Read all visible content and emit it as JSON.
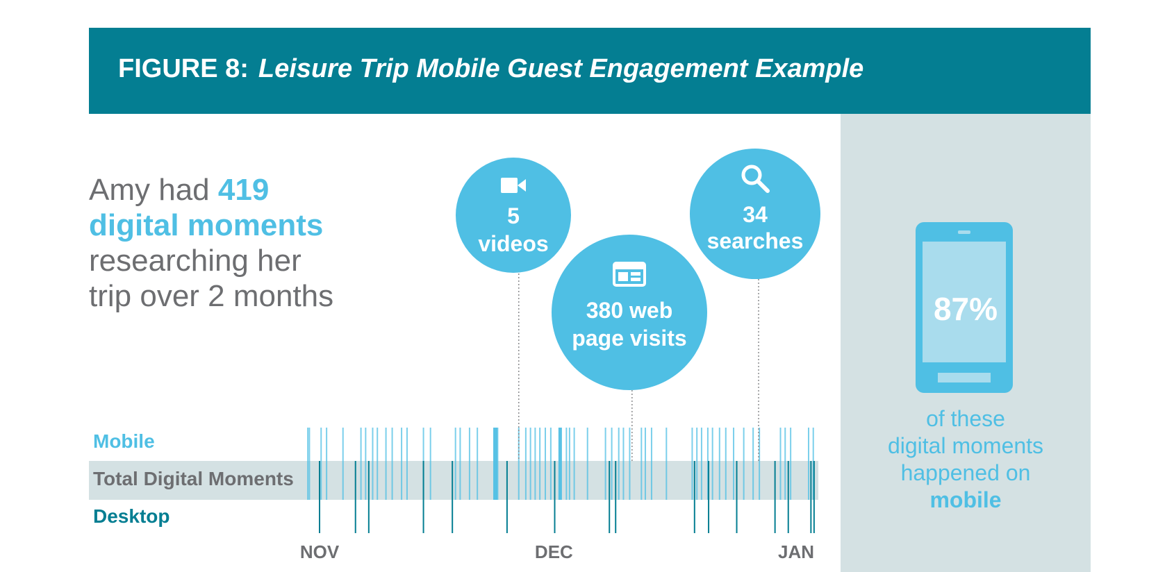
{
  "figure": {
    "number_label": "FIGURE 8:",
    "title": "Leisure Trip Mobile Guest Engagement Example"
  },
  "headline": {
    "line1_prefix": "Amy had ",
    "line1_value": "419",
    "line2": "digital moments",
    "line3": "researching her",
    "line4": "trip over 2 months"
  },
  "rows": {
    "mobile": "Mobile",
    "total": "Total Digital Moments",
    "desktop": "Desktop"
  },
  "bubbles": [
    {
      "icon": "video-camera-icon",
      "line1": "5",
      "line2": "videos",
      "value": 5
    },
    {
      "icon": "web-page-icon",
      "line1": "380 web",
      "line2": "page visits",
      "value": 380
    },
    {
      "icon": "search-icon",
      "line1": "34",
      "line2": "searches",
      "value": 34
    }
  ],
  "panel": {
    "value": "87%",
    "line1": "of these",
    "line2": "digital moments",
    "line3": "happened on",
    "line4": "mobile",
    "icon": "smartphone-icon"
  },
  "colors": {
    "banner": "#047e92",
    "mobile": "#4fbfe4",
    "desktop": "#047e92",
    "text_gray": "#6d6e71",
    "panel": "#d4e1e3",
    "band": "#d4e1e3"
  },
  "chart_data": {
    "type": "timeline",
    "x_unit": "day of timeline (0 = Nov)",
    "x_ticks": [
      {
        "label": "NOV",
        "day": 0
      },
      {
        "label": "DEC",
        "day": 30
      },
      {
        "label": "JAN",
        "day": 61
      }
    ],
    "series": [
      {
        "name": "Mobile",
        "events": [
          {
            "day": -1.5
          },
          {
            "day": -1.3
          },
          {
            "day": 0.2
          },
          {
            "day": 0.9
          },
          {
            "day": 3.0
          },
          {
            "day": 5.3
          },
          {
            "day": 5.9
          },
          {
            "day": 6.8
          },
          {
            "day": 7.4
          },
          {
            "day": 8.5
          },
          {
            "day": 9.3
          },
          {
            "day": 10.5
          },
          {
            "day": 11.2
          },
          {
            "day": 13.3
          },
          {
            "day": 14.2
          },
          {
            "day": 17.4
          },
          {
            "day": 18.0
          },
          {
            "day": 19.2
          },
          {
            "day": 20.2
          },
          {
            "day": 22.5,
            "w": 6,
            "strong": true
          },
          {
            "day": 22.8
          },
          {
            "day": 25.5
          },
          {
            "day": 26.4
          },
          {
            "day": 27.0
          },
          {
            "day": 27.6
          },
          {
            "day": 28.2
          },
          {
            "day": 28.9
          },
          {
            "day": 29.6
          },
          {
            "day": 30.8,
            "w": 5,
            "strong": true
          },
          {
            "day": 31.6
          },
          {
            "day": 32.0
          },
          {
            "day": 32.6
          },
          {
            "day": 34.3
          },
          {
            "day": 36.6
          },
          {
            "day": 37.4
          },
          {
            "day": 38.3
          },
          {
            "day": 38.9
          },
          {
            "day": 39.7
          },
          {
            "day": 41.2
          },
          {
            "day": 41.7
          },
          {
            "day": 42.5
          },
          {
            "day": 44.4
          },
          {
            "day": 47.7
          },
          {
            "day": 48.3
          },
          {
            "day": 48.9
          },
          {
            "day": 49.7
          },
          {
            "day": 50.3
          },
          {
            "day": 51.2
          },
          {
            "day": 52.0
          },
          {
            "day": 53.0
          },
          {
            "day": 54.3
          },
          {
            "day": 55.5
          },
          {
            "day": 56.3
          },
          {
            "day": 59.0
          },
          {
            "day": 59.6
          },
          {
            "day": 60.3
          },
          {
            "day": 62.6
          },
          {
            "day": 63.2
          }
        ]
      },
      {
        "name": "Desktop",
        "events": [
          {
            "day": 0.0
          },
          {
            "day": 4.6
          },
          {
            "day": 6.3
          },
          {
            "day": 13.3
          },
          {
            "day": 17.0
          },
          {
            "day": 24.0
          },
          {
            "day": 30.1
          },
          {
            "day": 37.1
          },
          {
            "day": 37.9
          },
          {
            "day": 48.0
          },
          {
            "day": 49.8
          },
          {
            "day": 53.4
          },
          {
            "day": 58.3
          },
          {
            "day": 60.0
          },
          {
            "day": 62.9
          },
          {
            "day": 63.3
          }
        ]
      }
    ],
    "annotations": [
      {
        "text": "5 videos",
        "day": 25.5
      },
      {
        "text": "380 web page visits",
        "day": 40.0
      },
      {
        "text": "34 searches",
        "day": 56.2
      }
    ]
  }
}
